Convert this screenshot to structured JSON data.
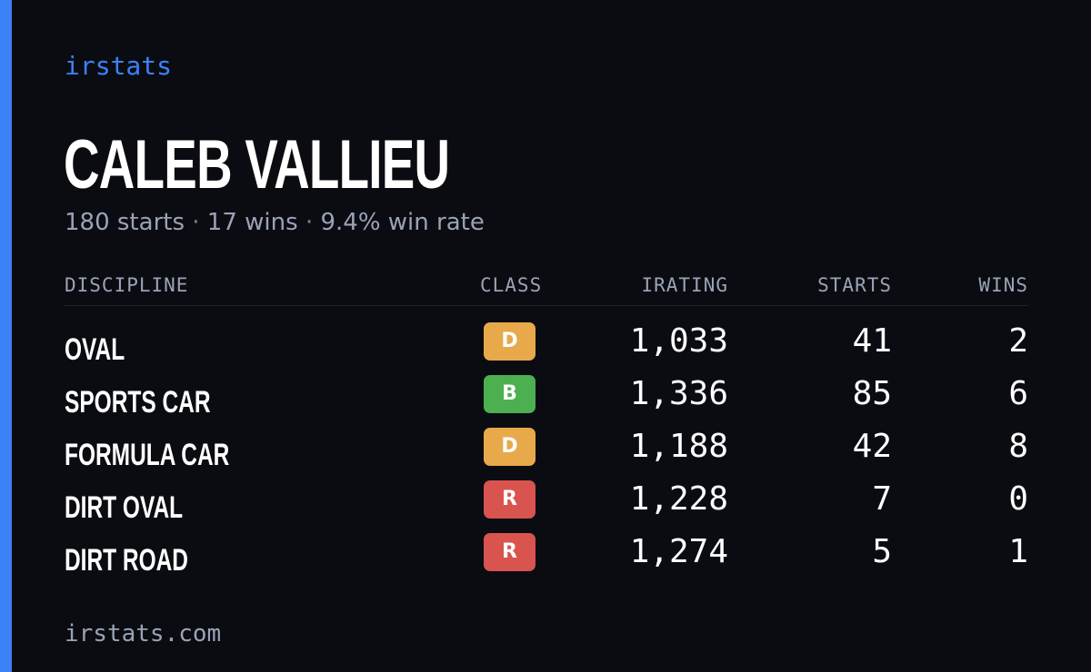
{
  "brand": "irstats",
  "driver": {
    "name": "CALEB VALLIEU",
    "starts_text": "180 starts",
    "wins_text": "17 wins",
    "win_rate_text": "9.4% win rate",
    "separator": "·"
  },
  "table": {
    "headers": {
      "discipline": "DISCIPLINE",
      "class": "CLASS",
      "irating": "IRATING",
      "starts": "STARTS",
      "wins": "WINS"
    },
    "rows": [
      {
        "discipline": "OVAL",
        "class": "D",
        "class_color": "#e8a94a",
        "irating": "1,033",
        "starts": "41",
        "wins": "2"
      },
      {
        "discipline": "SPORTS CAR",
        "class": "B",
        "class_color": "#4caf50",
        "irating": "1,336",
        "starts": "85",
        "wins": "6"
      },
      {
        "discipline": "FORMULA CAR",
        "class": "D",
        "class_color": "#e8a94a",
        "irating": "1,188",
        "starts": "42",
        "wins": "8"
      },
      {
        "discipline": "DIRT OVAL",
        "class": "R",
        "class_color": "#d9534f",
        "irating": "1,228",
        "starts": "7",
        "wins": "0"
      },
      {
        "discipline": "DIRT ROAD",
        "class": "R",
        "class_color": "#d9534f",
        "irating": "1,274",
        "starts": "5",
        "wins": "1"
      }
    ]
  },
  "footer": "irstats.com",
  "colors": {
    "accent": "#3b82f6",
    "background": "#0a0c12",
    "muted_text": "#9aa3b5"
  }
}
